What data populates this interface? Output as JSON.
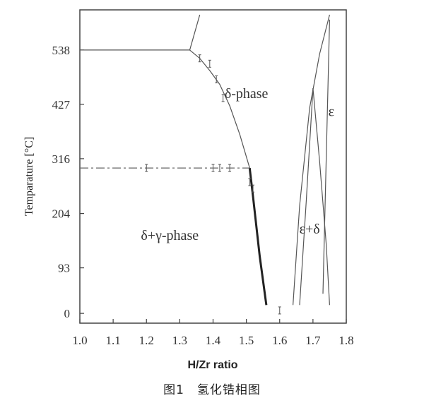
{
  "chart_data": {
    "type": "line",
    "title": "",
    "xlabel": "H/Zr ratio",
    "ylabel": "Temparature  [°C]",
    "xlim": [
      1.0,
      1.8
    ],
    "ylim": [
      -20,
      620
    ],
    "x_ticks": [
      1.0,
      1.1,
      1.2,
      1.3,
      1.4,
      1.5,
      1.6,
      1.7,
      1.8
    ],
    "x_tick_labels": [
      "1.0",
      "1.1",
      "1.2",
      "1.3",
      "1.4",
      "1.5",
      "1.6",
      "1.7",
      "1.8"
    ],
    "y_ticks": [
      0,
      93,
      204,
      316,
      427,
      538
    ],
    "y_tick_labels": [
      "0",
      "93",
      "204",
      "316",
      "427",
      "538"
    ],
    "grid": false,
    "series": [
      {
        "id": "delta-boundary-upper",
        "style": "solid-thin",
        "x": [
          1.0,
          1.33,
          1.36,
          1.39,
          1.42,
          1.45,
          1.48,
          1.51
        ],
        "y": [
          538,
          538,
          521,
          496,
          468,
          424,
          366,
          297
        ]
      },
      {
        "id": "delta-boundary-upper-short",
        "style": "solid-thin",
        "x": [
          1.33,
          1.36
        ],
        "y": [
          538,
          610
        ]
      },
      {
        "id": "delta-boundary-lower",
        "style": "solid-thick",
        "x": [
          1.51,
          1.52,
          1.54,
          1.56
        ],
        "y": [
          297,
          238,
          117,
          17
        ]
      },
      {
        "id": "eutectoid-line",
        "style": "dashed",
        "x": [
          1.0,
          1.1,
          1.2,
          1.3,
          1.4,
          1.5,
          1.51
        ],
        "y": [
          297,
          297,
          297,
          297,
          297,
          297,
          297
        ]
      },
      {
        "id": "epsilon-delta-left",
        "style": "solid-thin",
        "x": [
          1.64,
          1.66,
          1.69,
          1.72,
          1.75
        ],
        "y": [
          17,
          220,
          420,
          530,
          610
        ]
      },
      {
        "id": "epsilon-delta-right",
        "style": "solid-thin",
        "x": [
          1.7,
          1.72,
          1.74,
          1.75
        ],
        "y": [
          460,
          310,
          140,
          17
        ]
      },
      {
        "id": "epsilon-delta-inner-left",
        "style": "solid-thin",
        "x": [
          1.7,
          1.68,
          1.66
        ],
        "y": [
          460,
          230,
          17
        ]
      },
      {
        "id": "epsilon-right-boundary",
        "style": "solid-thin",
        "x": [
          1.73,
          1.74,
          1.75
        ],
        "y": [
          40,
          320,
          600
        ]
      }
    ],
    "data_points": [
      {
        "x": 1.2,
        "y": 297
      },
      {
        "x": 1.4,
        "y": 297
      },
      {
        "x": 1.42,
        "y": 297
      },
      {
        "x": 1.45,
        "y": 297
      },
      {
        "x": 1.36,
        "y": 521
      },
      {
        "x": 1.39,
        "y": 510
      },
      {
        "x": 1.41,
        "y": 478
      },
      {
        "x": 1.43,
        "y": 440
      },
      {
        "x": 1.51,
        "y": 268
      },
      {
        "x": 1.52,
        "y": 255
      },
      {
        "x": 1.6,
        "y": 6
      }
    ],
    "region_labels": [
      {
        "id": "delta-phase",
        "text": "δ-phase",
        "x": 1.5,
        "y": 440
      },
      {
        "id": "delta-gamma-phase",
        "text": "δ+γ-phase",
        "x": 1.27,
        "y": 150
      },
      {
        "id": "epsilon-delta",
        "text": "ε+δ",
        "x": 1.69,
        "y": 163
      },
      {
        "id": "epsilon",
        "text": "ε",
        "x": 1.755,
        "y": 403
      }
    ]
  },
  "caption": "图1　氢化锆相图"
}
